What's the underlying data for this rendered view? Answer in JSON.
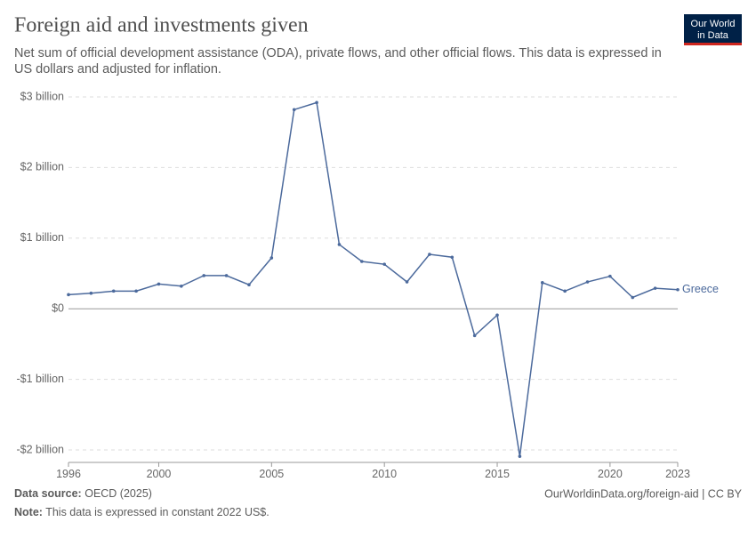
{
  "chart_data": {
    "type": "line",
    "title": "Foreign aid and investments given",
    "subtitle": "Net sum of official development assistance (ODA), private flows, and other official flows. This data is expressed in US dollars and adjusted for inflation.",
    "logo": [
      "Our World",
      "in Data"
    ],
    "source_label": "Data source:",
    "source": "OECD (2025)",
    "url": "OurWorldinData.org/foreign-aid | CC BY",
    "note_label": "Note:",
    "note": "This data is expressed in constant 2022 US$.",
    "x": [
      1996,
      1997,
      1998,
      1999,
      2000,
      2001,
      2002,
      2003,
      2004,
      2005,
      2006,
      2007,
      2008,
      2009,
      2010,
      2011,
      2012,
      2013,
      2014,
      2015,
      2016,
      2017,
      2018,
      2019,
      2020,
      2021,
      2022,
      2023
    ],
    "series": [
      {
        "name": "Greece",
        "color": "#4c6a9c",
        "values": [
          0.2,
          0.22,
          0.25,
          0.25,
          0.35,
          0.32,
          0.47,
          0.47,
          0.34,
          0.72,
          2.82,
          2.92,
          0.91,
          0.67,
          0.63,
          0.38,
          0.77,
          0.73,
          -0.38,
          -0.09,
          -2.09,
          0.37,
          0.25,
          0.38,
          0.46,
          0.16,
          0.29,
          0.27
        ]
      }
    ],
    "xlim": [
      1996,
      2023
    ],
    "xticks": [
      1996,
      2000,
      2005,
      2010,
      2015,
      2020,
      2023
    ],
    "ylim": [
      -2.1,
      3
    ],
    "yticks": [
      {
        "value": -2,
        "label": "-$2 billion"
      },
      {
        "value": -1,
        "label": "-$1 billion"
      },
      {
        "value": 0,
        "label": "$0"
      },
      {
        "value": 1,
        "label": "$1 billion"
      },
      {
        "value": 2,
        "label": "$2 billion"
      },
      {
        "value": 3,
        "label": "$3 billion"
      }
    ],
    "grid": true
  }
}
